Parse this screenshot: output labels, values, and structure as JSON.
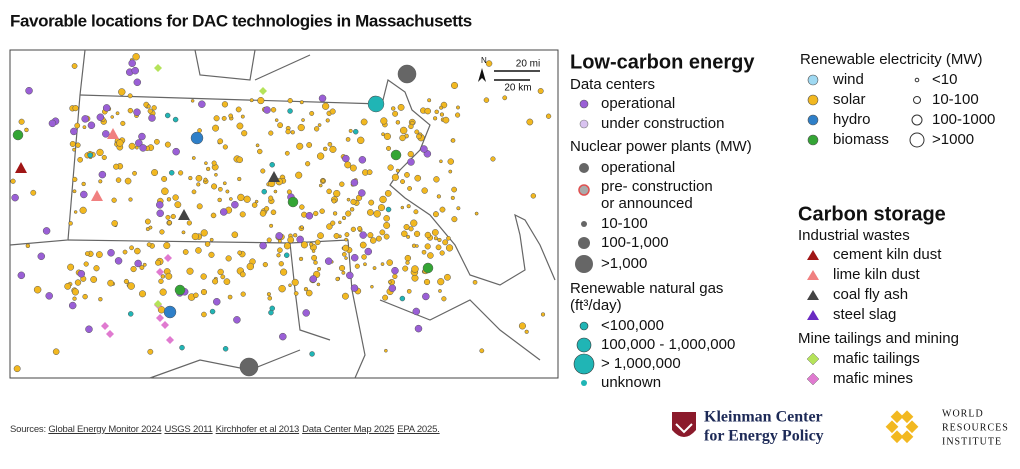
{
  "title": "Favorable locations for DAC technologies in Massachusetts",
  "map": {
    "north": "N",
    "scale_miles": "20 mi",
    "scale_km": "20 km"
  },
  "legend": {
    "low_carbon": {
      "title": "Low-carbon energy",
      "data_centers": {
        "title": "Data centers",
        "items": [
          "operational",
          "under construction"
        ]
      },
      "nuclear": {
        "title": "Nuclear power plants (MW)",
        "items": [
          "operational",
          [
            "pre- construction",
            "or announced"
          ],
          "10-100",
          "100-1,000",
          ">1,000"
        ]
      },
      "rng": {
        "title": [
          "Renewable natural gas",
          "(ft³/day)"
        ],
        "items": [
          "<100,000",
          "100,000 - 1,000,000",
          "> 1,000,000",
          "unknown"
        ]
      }
    },
    "renewable": {
      "title": "Renewable electricity (MW)",
      "types": [
        "wind",
        "solar",
        "hydro",
        "biomass"
      ],
      "sizes": [
        "<10",
        "10-100",
        "100-1000",
        ">1000"
      ]
    },
    "storage": {
      "title": "Carbon storage",
      "industrial": {
        "title": "Industrial wastes",
        "items": [
          "cement kiln dust",
          "lime kiln dust",
          "coal fly ash",
          "steel slag"
        ]
      },
      "mine": {
        "title": "Mine tailings and mining",
        "items": [
          "mafic tailings",
          "mafic mines"
        ]
      }
    }
  },
  "sources": {
    "label": "Sources:",
    "links": [
      "Global Energy Monitor 2024",
      "USGS 2011",
      "Kirchhofer et al 2013",
      "Data Center Map 2025",
      "EPA 2025."
    ]
  },
  "logos": {
    "kleinman": [
      "Kleinman Center",
      "for Energy Policy"
    ],
    "wri": [
      "WORLD",
      "RESOURCES",
      "INSTITUTE"
    ]
  }
}
